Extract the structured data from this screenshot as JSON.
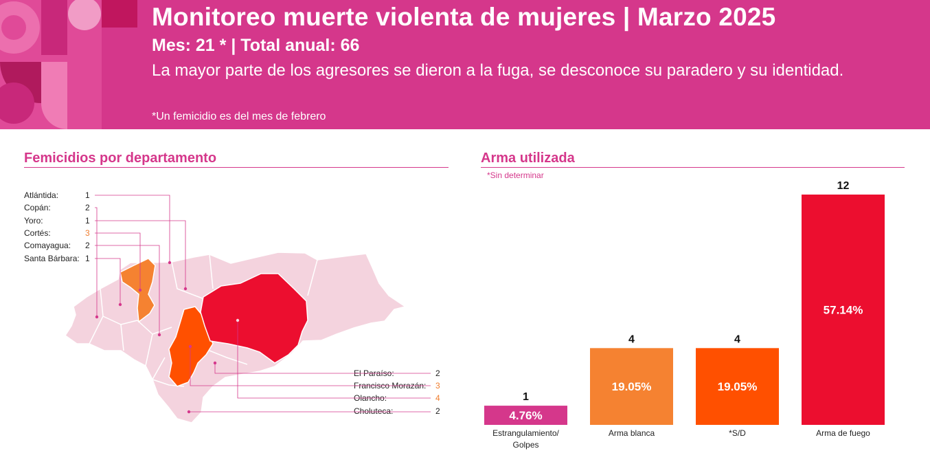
{
  "header": {
    "title": "Monitoreo muerte violenta de mujeres | Marzo 2025",
    "subtitle": "Mes: 21 * | Total anual: 66",
    "description": "La mayor parte de los agresores se dieron a la fuga, se desconoce su paradero y su identidad.",
    "note": "*Un femicidio es del mes de febrero"
  },
  "map_section": {
    "title": "Femicidios por departamento",
    "departments_left": [
      {
        "name": "Atlántida:",
        "count": "1",
        "highlight": false
      },
      {
        "name": "Copán:",
        "count": "2",
        "highlight": false
      },
      {
        "name": "Yoro:",
        "count": "1",
        "highlight": false
      },
      {
        "name": "Cortés:",
        "count": "3",
        "highlight": true
      },
      {
        "name": "Comayagua:",
        "count": "2",
        "highlight": false
      },
      {
        "name": "Santa Bárbara:",
        "count": "1",
        "highlight": false
      }
    ],
    "departments_right": [
      {
        "name": "El Paraíso:",
        "count": "2",
        "highlight": false
      },
      {
        "name": "Francisco Morazán:",
        "count": "3",
        "highlight": true
      },
      {
        "name": "Olancho:",
        "count": "4",
        "highlight": true
      },
      {
        "name": "Choluteca:",
        "count": "2",
        "highlight": false
      }
    ],
    "colors": {
      "base": "#f4d3de",
      "medium": "#f58231",
      "high": "#ec0e2f",
      "line": "#d5378b"
    }
  },
  "chart_section": {
    "title": "Arma utilizada",
    "legend_note": "*Sin determinar"
  },
  "chart_data": {
    "type": "bar",
    "categories": [
      "Estrangulamiento/ Golpes",
      "Arma blanca",
      "*S/D",
      "Arma de fuego"
    ],
    "values": [
      1,
      4,
      4,
      12
    ],
    "value_labels": [
      "1",
      "4",
      "4",
      "12"
    ],
    "percent_labels": [
      "4.76%",
      "19.05%",
      "19.05%",
      "57.14%"
    ],
    "colors": [
      "#d5378b",
      "#f58231",
      "#ff5000",
      "#ec0e2f"
    ],
    "ylim": [
      0,
      12
    ],
    "grid": false
  }
}
